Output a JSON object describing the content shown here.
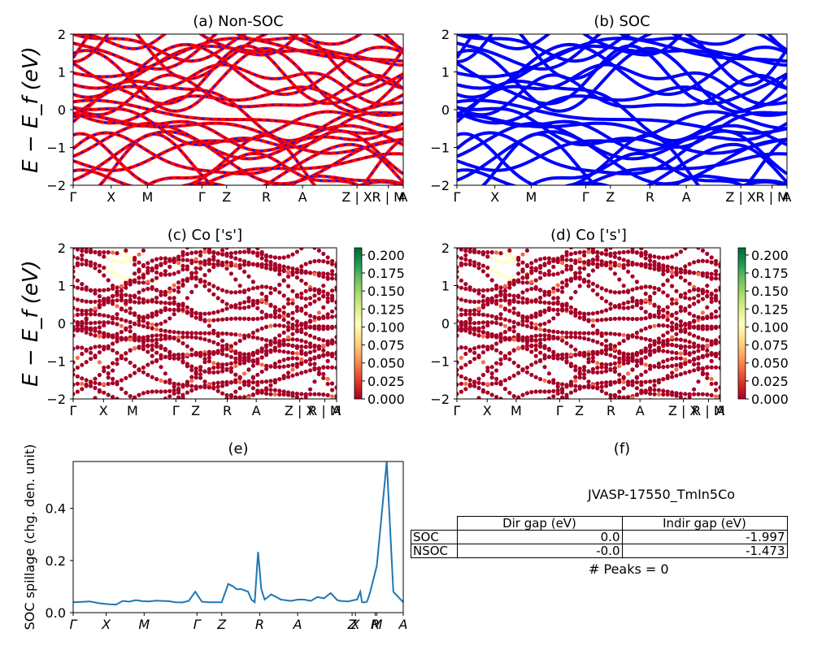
{
  "figure_id": "JVASP-17550_TmIn5Co",
  "panels": {
    "a": {
      "title": "(a) Non-SOC"
    },
    "b": {
      "title": "(b) SOC"
    },
    "c": {
      "title": "(c)  Co ['s']"
    },
    "d": {
      "title": "(d) Co ['s']"
    },
    "e": {
      "title": "(e)"
    },
    "f": {
      "title": "(f)"
    }
  },
  "band_axes": {
    "ylabel": "E − E_f (eV)",
    "yticks": [
      "2",
      "1",
      "0",
      "−1",
      "−2"
    ],
    "ylim": [
      -2,
      2
    ],
    "kpath_labels": [
      "Γ",
      "X",
      "M",
      "Γ",
      "Z",
      "R",
      "A",
      "Z | X",
      "R | M",
      "A"
    ]
  },
  "colorbar": {
    "ticks": [
      "0.200",
      "0.175",
      "0.150",
      "0.125",
      "0.100",
      "0.075",
      "0.050",
      "0.025",
      "0.000"
    ],
    "range": [
      0,
      0.21
    ],
    "colormap": "RdYlGn"
  },
  "colors": {
    "nonsoc_line": "#ff0000",
    "nonsoc_dash": "#0000ff",
    "soc_line": "#0000ff",
    "spillage_line": "#1f77b4",
    "proj_low": "#a50026"
  },
  "chart_data": [
    {
      "type": "line",
      "title": "(e)",
      "ylabel": "SOC spillage (chg. den. unit)",
      "ylim": [
        0,
        0.58
      ],
      "yticks": [
        "0.0",
        "0.2",
        "0.4"
      ],
      "xtick_labels": [
        "Γ",
        "X",
        "M",
        "Γ",
        "Z",
        "R",
        "A",
        "Z",
        "X",
        "R",
        "M",
        "A"
      ],
      "x": [
        0,
        0.02,
        0.05,
        0.08,
        0.11,
        0.13,
        0.15,
        0.17,
        0.19,
        0.21,
        0.23,
        0.25,
        0.27,
        0.29,
        0.31,
        0.33,
        0.35,
        0.37,
        0.39,
        0.41,
        0.43,
        0.45,
        0.47,
        0.485,
        0.49,
        0.495,
        0.5,
        0.505,
        0.51,
        0.52,
        0.53,
        0.54,
        0.55,
        0.56,
        0.57,
        0.58,
        0.6,
        0.63,
        0.66,
        0.68,
        0.7,
        0.72,
        0.74,
        0.76,
        0.78,
        0.8,
        0.81,
        0.82,
        0.83,
        0.84,
        0.85,
        0.86,
        0.87,
        0.875,
        0.88,
        0.885,
        0.89,
        0.895,
        0.9,
        0.92,
        0.95,
        0.97,
        1.0
      ],
      "y": [
        0.04,
        0.041,
        0.043,
        0.036,
        0.032,
        0.031,
        0.045,
        0.042,
        0.048,
        0.044,
        0.043,
        0.046,
        0.045,
        0.044,
        0.04,
        0.039,
        0.045,
        0.08,
        0.042,
        0.04,
        0.04,
        0.04,
        0.11,
        0.1,
        0.095,
        0.09,
        0.09,
        0.09,
        0.09,
        0.085,
        0.08,
        0.05,
        0.04,
        0.233,
        0.09,
        0.05,
        0.07,
        0.05,
        0.045,
        0.05,
        0.05,
        0.045,
        0.06,
        0.055,
        0.075,
        0.048,
        0.045,
        0.044,
        0.043,
        0.045,
        0.048,
        0.05,
        0.08,
        0.04,
        0.04,
        0.04,
        0.042,
        0.06,
        0.08,
        0.18,
        0.58,
        0.08,
        0.04
      ]
    }
  ],
  "table": {
    "header": [
      "",
      "Dir gap (eV)",
      "Indir gap (eV)"
    ],
    "rows": [
      {
        "label": "SOC",
        "dir": "0.0",
        "indir": "-1.997"
      },
      {
        "label": "NSOC",
        "dir": "-0.0",
        "indir": "-1.473"
      }
    ],
    "peaks_text": "# Peaks = 0"
  }
}
